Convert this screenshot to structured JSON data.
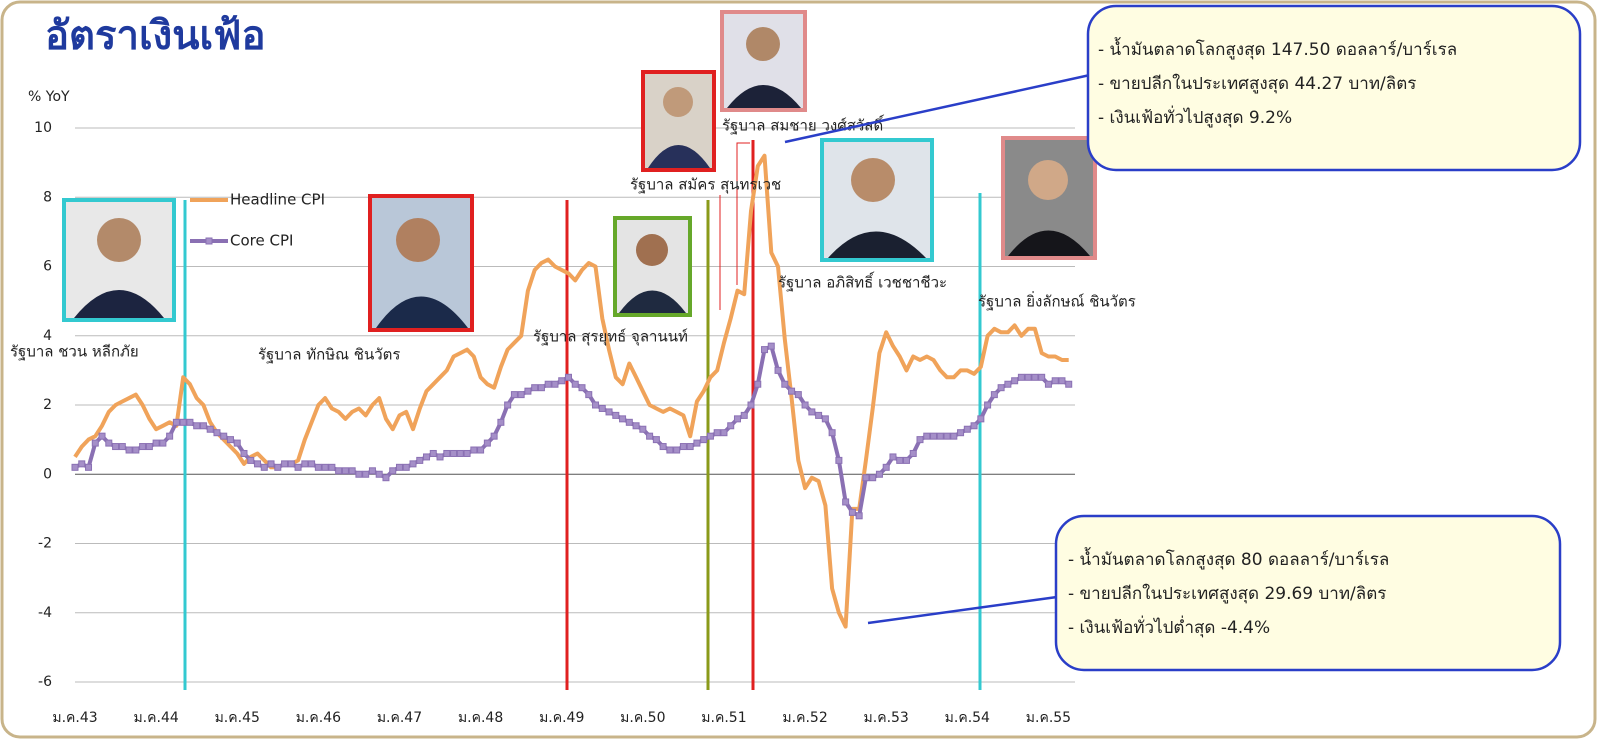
{
  "chart_data": {
    "type": "line",
    "title": "อัตราเงินเฟ้อ",
    "y_label": "% YoY",
    "ylim": [
      -6,
      10
    ],
    "yticks": [
      -6,
      -4,
      -2,
      0,
      2,
      4,
      6,
      8,
      10
    ],
    "grid": true,
    "legend": "upper left",
    "categories": [
      "ม.ค.43",
      null,
      null,
      null,
      null,
      null,
      null,
      null,
      null,
      null,
      null,
      null,
      "ม.ค.44",
      null,
      null,
      null,
      null,
      null,
      null,
      null,
      null,
      null,
      null,
      null,
      "ม.ค.45",
      null,
      null,
      null,
      null,
      null,
      null,
      null,
      null,
      null,
      null,
      null,
      "ม.ค.46",
      null,
      null,
      null,
      null,
      null,
      null,
      null,
      null,
      null,
      null,
      null,
      "ม.ค.47",
      null,
      null,
      null,
      null,
      null,
      null,
      null,
      null,
      null,
      null,
      null,
      "ม.ค.48",
      null,
      null,
      null,
      null,
      null,
      null,
      null,
      null,
      null,
      null,
      null,
      "ม.ค.49",
      null,
      null,
      null,
      null,
      null,
      null,
      null,
      null,
      null,
      null,
      null,
      "ม.ค.50",
      null,
      null,
      null,
      null,
      null,
      null,
      null,
      null,
      null,
      null,
      null,
      "ม.ค.51",
      null,
      null,
      null,
      null,
      null,
      null,
      null,
      null,
      null,
      null,
      null,
      "ม.ค.52",
      null,
      null,
      null,
      null,
      null,
      null,
      null,
      null,
      null,
      null,
      null,
      "ม.ค.53",
      null,
      null,
      null,
      null,
      null,
      null,
      null,
      null,
      null,
      null,
      null,
      "ม.ค.54",
      null,
      null,
      null,
      null,
      null,
      null,
      null,
      null,
      null,
      null,
      null,
      "ม.ค.55",
      null,
      null,
      null
    ],
    "series": [
      {
        "name": "Headline CPI",
        "color": "#f0a35a",
        "values": [
          0.5,
          0.8,
          1.0,
          1.1,
          1.4,
          1.8,
          2.0,
          2.1,
          2.2,
          2.3,
          2.0,
          1.6,
          1.3,
          1.4,
          1.5,
          1.4,
          2.8,
          2.6,
          2.2,
          2.0,
          1.5,
          1.2,
          1.0,
          0.8,
          0.6,
          0.3,
          0.5,
          0.6,
          0.4,
          0.2,
          0.2,
          0.3,
          0.3,
          0.4,
          1.0,
          1.5,
          2.0,
          2.2,
          1.9,
          1.8,
          1.6,
          1.8,
          1.9,
          1.7,
          2.0,
          2.2,
          1.6,
          1.3,
          1.7,
          1.8,
          1.3,
          1.9,
          2.4,
          2.6,
          2.8,
          3.0,
          3.4,
          3.5,
          3.6,
          3.4,
          2.8,
          2.6,
          2.5,
          3.1,
          3.6,
          3.8,
          4.0,
          5.3,
          5.9,
          6.1,
          6.2,
          6.0,
          5.9,
          5.8,
          5.6,
          5.9,
          6.1,
          6.0,
          4.5,
          3.6,
          2.8,
          2.6,
          3.2,
          2.8,
          2.4,
          2.0,
          1.9,
          1.8,
          1.9,
          1.8,
          1.7,
          1.1,
          2.1,
          2.4,
          2.8,
          3.0,
          3.8,
          4.5,
          5.3,
          5.2,
          7.6,
          8.9,
          9.2,
          6.4,
          6.0,
          3.9,
          2.2,
          0.4,
          -0.4,
          -0.1,
          -0.2,
          -0.9,
          -3.3,
          -4.0,
          -4.4,
          -1.0,
          -1.0,
          0.4,
          1.9,
          3.5,
          4.1,
          3.7,
          3.4,
          3.0,
          3.4,
          3.3,
          3.4,
          3.3,
          3.0,
          2.8,
          2.8,
          3.0,
          3.0,
          2.9,
          3.1,
          4.0,
          4.2,
          4.1,
          4.1,
          4.3,
          4.0,
          4.2,
          4.2,
          3.5,
          3.4,
          3.4,
          3.3,
          3.3
        ]
      },
      {
        "name": "Core CPI",
        "color": "#8a70b3",
        "values": [
          0.2,
          0.3,
          0.2,
          0.9,
          1.1,
          0.9,
          0.8,
          0.8,
          0.7,
          0.7,
          0.8,
          0.8,
          0.9,
          0.9,
          1.1,
          1.5,
          1.5,
          1.5,
          1.4,
          1.4,
          1.3,
          1.2,
          1.1,
          1.0,
          0.9,
          0.6,
          0.4,
          0.3,
          0.2,
          0.3,
          0.2,
          0.3,
          0.3,
          0.2,
          0.3,
          0.3,
          0.2,
          0.2,
          0.2,
          0.1,
          0.1,
          0.1,
          0.0,
          0.0,
          0.1,
          0.0,
          -0.1,
          0.1,
          0.2,
          0.2,
          0.3,
          0.4,
          0.5,
          0.6,
          0.5,
          0.6,
          0.6,
          0.6,
          0.6,
          0.7,
          0.7,
          0.9,
          1.1,
          1.5,
          2.0,
          2.3,
          2.3,
          2.4,
          2.5,
          2.5,
          2.6,
          2.6,
          2.7,
          2.8,
          2.6,
          2.5,
          2.3,
          2.0,
          1.9,
          1.8,
          1.7,
          1.6,
          1.5,
          1.4,
          1.3,
          1.1,
          1.0,
          0.8,
          0.7,
          0.7,
          0.8,
          0.8,
          0.9,
          1.0,
          1.1,
          1.2,
          1.2,
          1.4,
          1.6,
          1.7,
          2.0,
          2.6,
          3.6,
          3.7,
          3.0,
          2.6,
          2.4,
          2.3,
          2.0,
          1.8,
          1.7,
          1.6,
          1.2,
          0.4,
          -0.8,
          -1.1,
          -1.2,
          -0.1,
          -0.1,
          0.0,
          0.2,
          0.5,
          0.4,
          0.4,
          0.6,
          1.0,
          1.1,
          1.1,
          1.1,
          1.1,
          1.1,
          1.2,
          1.3,
          1.4,
          1.6,
          2.0,
          2.3,
          2.5,
          2.6,
          2.7,
          2.8,
          2.8,
          2.8,
          2.8,
          2.6,
          2.7,
          2.7,
          2.6
        ]
      }
    ],
    "annotations": [
      "รัฐบาล ชวน หลีกภัย",
      "รัฐบาล ทักษิณ ชินวัตร",
      "รัฐบาล สุรยุทธ์ จุลานนท์",
      "รัฐบาล สมัคร สุนทรเวช",
      "รัฐบาล สมชาย วงศ์สวัสดิ์",
      "รัฐบาล อภิสิทธิ์ เวชชาชีวะ",
      "รัฐบาล ยิ่งลักษณ์ ชินวัตร"
    ],
    "callouts": [
      [
        "- น้ำมันตลาดโลกสูงสุด 147.50 ดอลลาร์/บาร์เรล",
        "- ขายปลีกในประเทศสูงสุด 44.27 บาท/ลิตร",
        "- เงินเฟ้อทั่วไปสูงสุด 9.2%"
      ],
      [
        "- น้ำมันตลาดโลกสูงสุด 80 ดอลลาร์/บาร์เรล",
        "- ขายปลีกในประเทศสูงสุด 29.69 บาท/ลิตร",
        "- เงินเฟ้อทั่วไปต่ำสุด -4.4%"
      ]
    ]
  }
}
